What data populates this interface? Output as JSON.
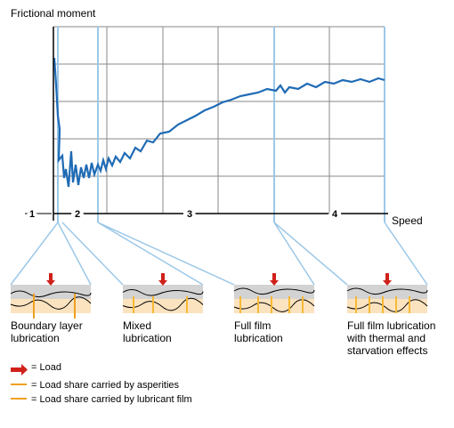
{
  "axes": {
    "y_label": "Frictional moment",
    "x_label": "Speed"
  },
  "zones": [
    "1",
    "2",
    "3",
    "4"
  ],
  "panels": [
    {
      "lines": [
        "Boundary layer",
        "lubrication"
      ]
    },
    {
      "lines": [
        "Mixed",
        "lubrication"
      ]
    },
    {
      "lines": [
        "Full film",
        "lubrication"
      ]
    },
    {
      "lines": [
        "Full film lubrication",
        "with thermal and",
        "starvation effects"
      ]
    }
  ],
  "legend": [
    "= Load",
    "= Load share carried by asperities",
    "= Load share carried by lubricant film"
  ]
}
